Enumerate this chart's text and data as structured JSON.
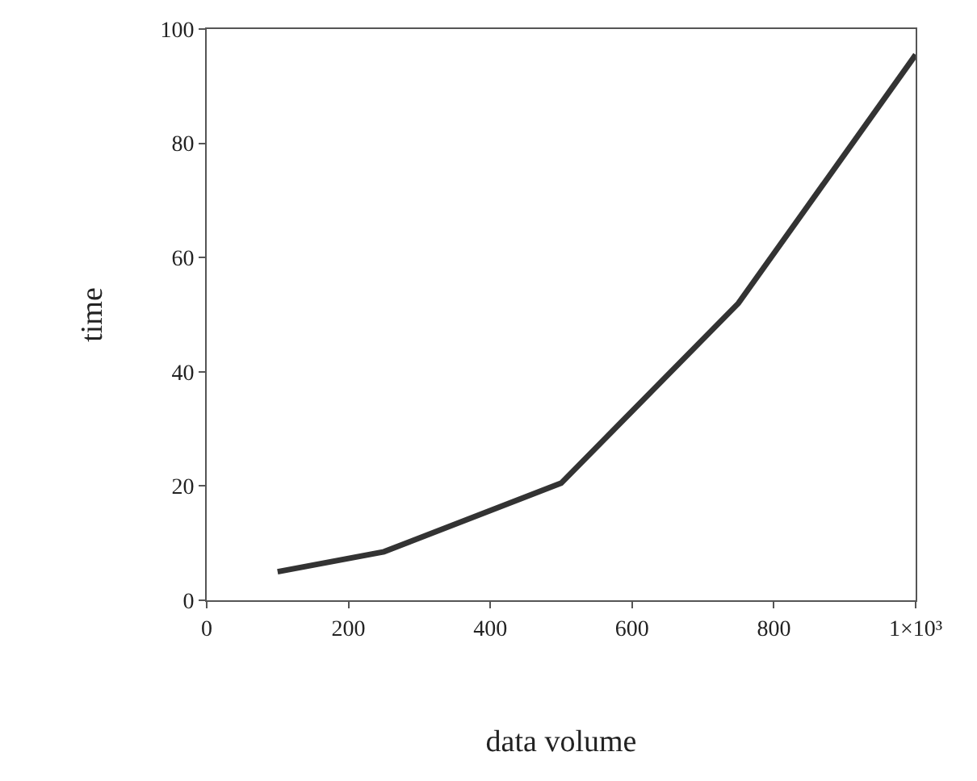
{
  "chart_data": {
    "type": "line",
    "xlabel": "data volume",
    "ylabel": "time",
    "x": [
      100,
      250,
      500,
      750,
      1000
    ],
    "series": [
      {
        "color": "#333333",
        "values": [
          5,
          8.5,
          20.5,
          52,
          95.5
        ]
      }
    ],
    "xlim": [
      0,
      1000
    ],
    "ylim": [
      0,
      100
    ],
    "xticks": [
      0,
      200,
      400,
      600,
      800,
      {
        "value": 1000,
        "label": "1×10³"
      }
    ],
    "yticks": [
      0,
      20,
      40,
      60,
      80,
      100
    ],
    "marker": "none",
    "line_style": "solid"
  }
}
